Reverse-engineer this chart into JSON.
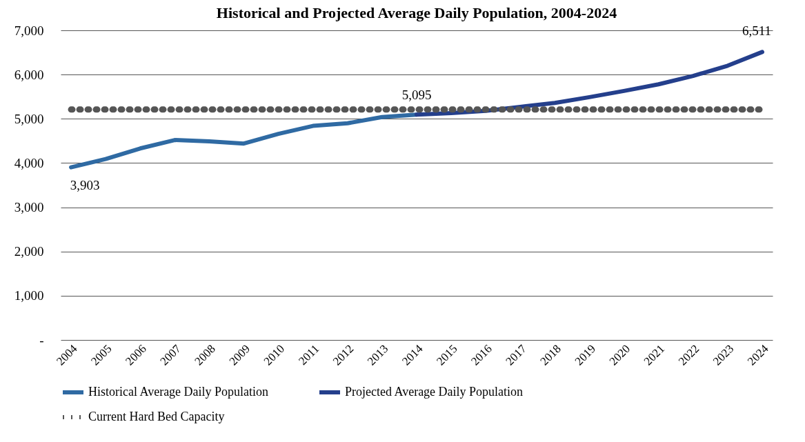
{
  "chart_data": {
    "type": "line",
    "title": "Historical and Projected Average Daily Population, 2004-2024",
    "categories": [
      "2004",
      "2005",
      "2006",
      "2007",
      "2008",
      "2009",
      "2010",
      "2011",
      "2012",
      "2013",
      "2014",
      "2015",
      "2016",
      "2017",
      "2018",
      "2019",
      "2020",
      "2021",
      "2022",
      "2023",
      "2024"
    ],
    "series": [
      {
        "name": "Historical Average Daily Population",
        "color": "#2f6aa3",
        "line_style": "solid",
        "values": [
          3903,
          4090,
          4330,
          4520,
          4490,
          4440,
          4660,
          4840,
          4900,
          5040,
          5095,
          null,
          null,
          null,
          null,
          null,
          null,
          null,
          null,
          null,
          null
        ],
        "value_labels": [
          "3,903",
          null,
          null,
          null,
          null,
          null,
          null,
          null,
          null,
          null,
          "5,095",
          null,
          null,
          null,
          null,
          null,
          null,
          null,
          null,
          null,
          null
        ]
      },
      {
        "name": "Projected Average Daily Population",
        "color": "#243f8c",
        "line_style": "solid",
        "values": [
          null,
          null,
          null,
          null,
          null,
          null,
          null,
          null,
          null,
          null,
          5095,
          5130,
          5180,
          5270,
          5360,
          5490,
          5630,
          5780,
          5970,
          6200,
          6511
        ],
        "value_labels": [
          null,
          null,
          null,
          null,
          null,
          null,
          null,
          null,
          null,
          null,
          null,
          null,
          null,
          null,
          null,
          null,
          null,
          null,
          null,
          null,
          "6,511"
        ]
      },
      {
        "name": "Current Hard Bed Capacity",
        "color": "#555555",
        "line_style": "dotted",
        "values": [
          5210,
          5210,
          5210,
          5210,
          5210,
          5210,
          5210,
          5210,
          5210,
          5210,
          5210,
          5210,
          5210,
          5210,
          5210,
          5210,
          5210,
          5210,
          5210,
          5210,
          5210
        ]
      }
    ],
    "ylim": [
      0,
      7000
    ],
    "yticks": [
      {
        "value": 0,
        "label": "-"
      },
      {
        "value": 1000,
        "label": "1,000"
      },
      {
        "value": 2000,
        "label": "2,000"
      },
      {
        "value": 3000,
        "label": "3,000"
      },
      {
        "value": 4000,
        "label": "4,000"
      },
      {
        "value": 5000,
        "label": "5,000"
      },
      {
        "value": 6000,
        "label": "6,000"
      },
      {
        "value": 7000,
        "label": "7,000"
      }
    ],
    "grid": "y",
    "legend": "bottom",
    "marker": "none"
  }
}
